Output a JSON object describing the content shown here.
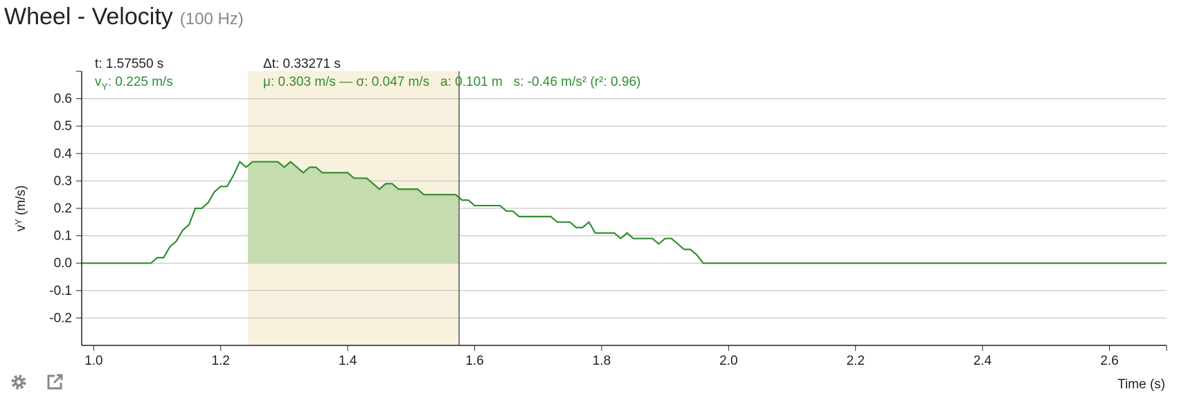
{
  "header": {
    "title": "Wheel - Velocity",
    "rate": "(100 Hz)"
  },
  "chart_data": {
    "type": "line",
    "x_label": "Time (s)",
    "y_label": {
      "main": "v",
      "sub": "Y",
      "unit": " (m/s)"
    },
    "xlim": [
      0.981,
      2.69
    ],
    "ylim": [
      -0.3,
      0.7
    ],
    "xticks": [
      {
        "value": 1.0,
        "label": "1.0"
      },
      1.2,
      1.4,
      1.6,
      1.8,
      {
        "value": 2.0,
        "label": "2.0"
      },
      2.2,
      2.4,
      2.6
    ],
    "yticks": [
      -0.2,
      -0.1,
      {
        "value": 0.0,
        "label": "0.0"
      },
      0.1,
      0.2,
      0.3,
      0.4,
      0.5,
      0.6
    ],
    "grid": true,
    "series": [
      {
        "color": "#2f8f2f",
        "x": [
          0.981,
          1.08,
          1.09,
          1.1,
          1.11,
          1.12,
          1.13,
          1.14,
          1.15,
          1.16,
          1.17,
          1.18,
          1.19,
          1.2,
          1.21,
          1.22,
          1.23,
          1.24,
          1.25,
          1.26,
          1.27,
          1.28,
          1.29,
          1.3,
          1.31,
          1.32,
          1.33,
          1.34,
          1.35,
          1.36,
          1.37,
          1.38,
          1.39,
          1.4,
          1.41,
          1.42,
          1.43,
          1.44,
          1.45,
          1.46,
          1.47,
          1.48,
          1.49,
          1.5,
          1.51,
          1.52,
          1.53,
          1.54,
          1.55,
          1.56,
          1.57,
          1.58,
          1.59,
          1.6,
          1.61,
          1.62,
          1.63,
          1.64,
          1.65,
          1.66,
          1.67,
          1.68,
          1.69,
          1.7,
          1.71,
          1.72,
          1.73,
          1.74,
          1.75,
          1.76,
          1.77,
          1.78,
          1.79,
          1.8,
          1.81,
          1.82,
          1.83,
          1.84,
          1.85,
          1.86,
          1.87,
          1.88,
          1.89,
          1.9,
          1.91,
          1.92,
          1.93,
          1.94,
          1.95,
          1.96,
          2.69
        ],
        "values": [
          0,
          0,
          0,
          0.02,
          0.02,
          0.06,
          0.08,
          0.12,
          0.14,
          0.2,
          0.2,
          0.22,
          0.26,
          0.28,
          0.28,
          0.32,
          0.37,
          0.35,
          0.37,
          0.37,
          0.37,
          0.37,
          0.37,
          0.35,
          0.37,
          0.35,
          0.33,
          0.35,
          0.35,
          0.33,
          0.33,
          0.33,
          0.33,
          0.33,
          0.31,
          0.31,
          0.31,
          0.29,
          0.27,
          0.29,
          0.29,
          0.27,
          0.27,
          0.27,
          0.27,
          0.25,
          0.25,
          0.25,
          0.25,
          0.25,
          0.25,
          0.23,
          0.23,
          0.21,
          0.21,
          0.21,
          0.21,
          0.21,
          0.19,
          0.19,
          0.17,
          0.17,
          0.17,
          0.17,
          0.17,
          0.17,
          0.15,
          0.15,
          0.15,
          0.13,
          0.13,
          0.15,
          0.11,
          0.11,
          0.11,
          0.11,
          0.09,
          0.11,
          0.09,
          0.09,
          0.09,
          0.09,
          0.07,
          0.09,
          0.09,
          0.07,
          0.05,
          0.05,
          0.03,
          0,
          0
        ]
      }
    ],
    "selection_start": 1.24279,
    "cursor": {
      "value": 1.5755,
      "label": "t: 1.57550 s"
    },
    "delta": "Δt: 0.33271 s",
    "readout": {
      "main": "v",
      "sub": "Y",
      "rest": ": 0.225 m/s"
    },
    "stats": "μ: 0.303 m/s — σ: 0.047 m/s   a: 0.101 m   s: -0.46 m/s² (r²: 0.96)"
  }
}
